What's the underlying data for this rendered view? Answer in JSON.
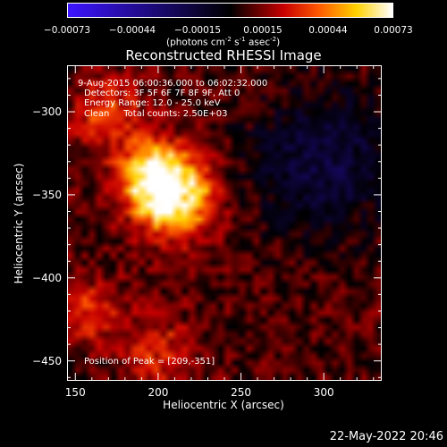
{
  "chart_data": {
    "type": "heatmap",
    "title": "Reconstructed RHESSI Image",
    "xlabel": "Heliocentric X (arcsec)",
    "ylabel": "Heliocentric Y (arcsec)",
    "xlim": [
      145,
      335
    ],
    "ylim": [
      -462,
      -272
    ],
    "x_ticks": [
      "150",
      "200",
      "250",
      "300"
    ],
    "y_ticks": [
      "-300",
      "-350",
      "-400",
      "-450"
    ],
    "colorbar": {
      "ticks": [
        "-0.00073",
        "-0.00044",
        "-0.00015",
        "0.00015",
        "0.00044",
        "0.00073"
      ],
      "min": -0.00073,
      "max": 0.00073,
      "unit_main": "(photons cm",
      "unit_exp1": "-2",
      "unit_s": " s",
      "unit_exp2": "-1",
      "unit_asec": " asec",
      "unit_exp3": "-2",
      "unit_end": ")"
    },
    "annotations": [
      "9-Aug-2015 06:00:36.000 to 06:02:32.000",
      "Detectors: 3F 5F 6F 7F 8F 9F, Att 0",
      "Energy Range: 12.0 - 25.0 keV",
      "Clean     Total counts: 2.50E+03"
    ],
    "peak_label": "Position of Peak = [209,-351]",
    "peak": [
      209,
      -351
    ],
    "hotspots": [
      {
        "x": 209,
        "y": -351,
        "value": 1.0
      },
      {
        "x": 195,
        "y": -335,
        "value": 0.55
      },
      {
        "x": 170,
        "y": -300,
        "value": 0.35
      },
      {
        "x": 160,
        "y": -420,
        "value": 0.3
      },
      {
        "x": 200,
        "y": -445,
        "value": 0.3
      }
    ],
    "background_level": 0.12,
    "cold_region": {
      "x": 300,
      "y": -330,
      "value": -0.35
    },
    "grid": false
  },
  "footer": {
    "timestamp": "22-May-2022 20:46"
  }
}
